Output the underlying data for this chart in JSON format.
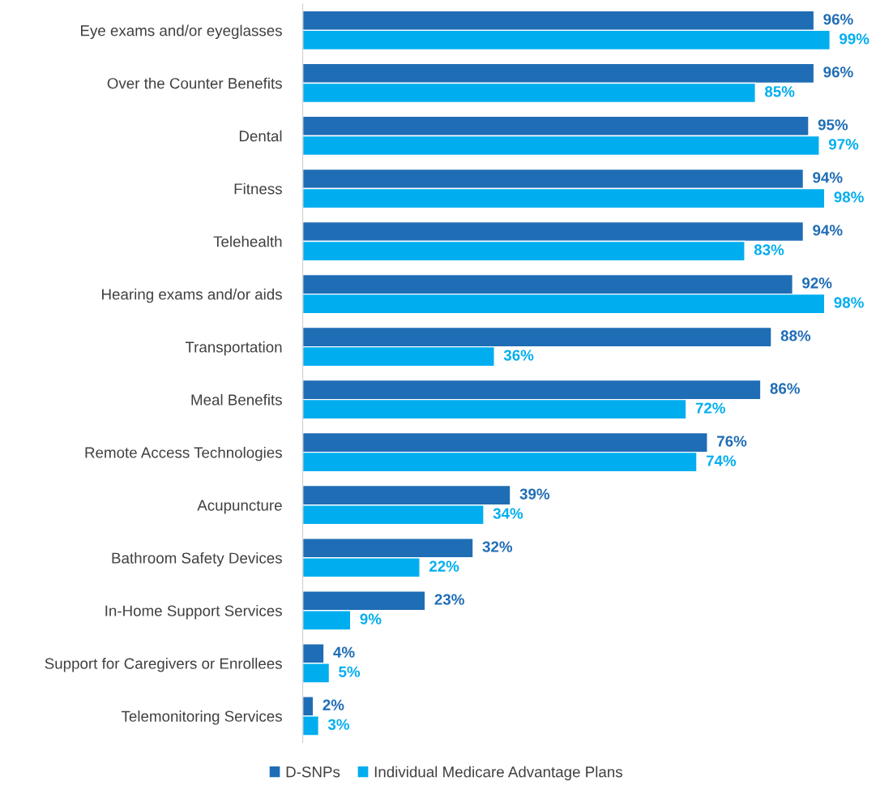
{
  "chart_data": {
    "type": "bar",
    "orientation": "horizontal",
    "legend": "bottom",
    "grid": false,
    "categories": [
      "Eye exams and/or eyeglasses",
      "Over the Counter Benefits",
      "Dental",
      "Fitness",
      "Telehealth",
      "Hearing exams and/or aids",
      "Transportation",
      "Meal Benefits",
      "Remote Access Technologies",
      "Acupuncture",
      "Bathroom Safety Devices",
      "In-Home Support Services",
      "Support for Caregivers or Enrollees",
      "Telemonitoring Services"
    ],
    "series": [
      {
        "name": "D-SNPs",
        "color": "#1f6db5",
        "values": [
          96,
          96,
          95,
          94,
          94,
          92,
          88,
          86,
          76,
          39,
          32,
          23,
          4,
          2
        ],
        "value_labels": [
          "96%",
          "96%",
          "95%",
          "94%",
          "94%",
          "92%",
          "88%",
          "86%",
          "76%",
          "39%",
          "32%",
          "23%",
          "4%",
          "2%"
        ]
      },
      {
        "name": "Individual Medicare Advantage Plans",
        "color": "#00aeef",
        "values": [
          99,
          85,
          97,
          98,
          83,
          98,
          36,
          72,
          74,
          34,
          22,
          9,
          5,
          3
        ],
        "value_labels": [
          "99%",
          "85%",
          "97%",
          "98%",
          "83%",
          "98%",
          "36%",
          "72%",
          "74%",
          "34%",
          "22%",
          "9%",
          "5%",
          "3%"
        ]
      }
    ]
  }
}
